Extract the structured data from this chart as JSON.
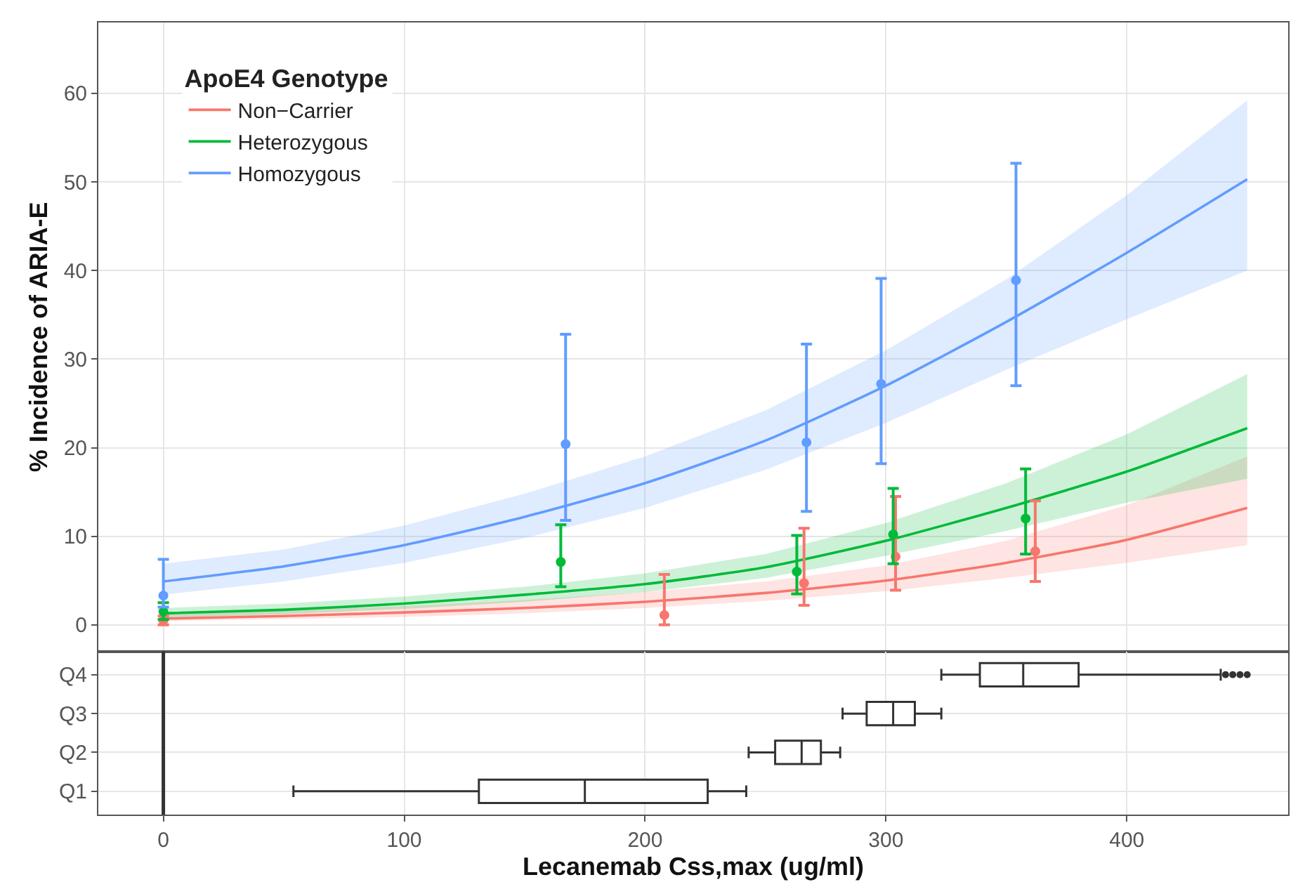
{
  "chart_data": [
    {
      "type": "line",
      "ylabel": "% Incidence of ARIA-E",
      "legend_title": "ApoE4 Genotype",
      "legend": "top left",
      "grid": true,
      "tick_labels": "y",
      "xlim": [
        -27,
        467
      ],
      "xticks": [
        0,
        100,
        200,
        300,
        400
      ],
      "ylim": [
        -3,
        68
      ],
      "yticks": [
        0,
        10,
        20,
        30,
        40,
        50,
        60
      ],
      "series": [
        {
          "name": "Non−Carrier",
          "color": "#f8766d",
          "marker": "none",
          "x": [
            0,
            50,
            100,
            150,
            200,
            250,
            300,
            350,
            400,
            450
          ],
          "values": [
            0.7,
            1.0,
            1.4,
            1.9,
            2.6,
            3.6,
            5.0,
            7.0,
            9.6,
            13.2
          ],
          "lower": [
            0.4,
            0.6,
            0.9,
            1.3,
            1.9,
            2.7,
            3.8,
            5.3,
            7.0,
            9.0
          ],
          "upper": [
            1.2,
            1.6,
            2.1,
            2.8,
            3.7,
            4.9,
            6.7,
            9.5,
            13.5,
            19.0
          ]
        },
        {
          "name": "Heterozygous",
          "color": "#00ba38",
          "marker": "none",
          "x": [
            0,
            50,
            100,
            150,
            200,
            250,
            300,
            350,
            400,
            450
          ],
          "values": [
            1.3,
            1.7,
            2.4,
            3.4,
            4.6,
            6.5,
            9.5,
            13.2,
            17.3,
            22.2
          ],
          "lower": [
            0.8,
            1.2,
            1.8,
            2.6,
            3.7,
            5.3,
            7.8,
            10.6,
            13.8,
            16.5
          ],
          "upper": [
            1.9,
            2.4,
            3.2,
            4.3,
            5.8,
            8.0,
            11.5,
            16.0,
            21.5,
            28.3
          ]
        },
        {
          "name": "Homozygous",
          "color": "#619cff",
          "marker": "none",
          "x": [
            0,
            50,
            100,
            150,
            200,
            250,
            300,
            350,
            400,
            450
          ],
          "values": [
            4.9,
            6.6,
            9.0,
            12.2,
            16.0,
            20.8,
            27.0,
            34.2,
            42.0,
            50.3
          ],
          "lower": [
            3.4,
            4.9,
            7.0,
            9.8,
            13.2,
            17.5,
            22.8,
            28.8,
            34.5,
            40.0
          ],
          "upper": [
            6.9,
            8.5,
            11.2,
            14.8,
            19.0,
            24.2,
            31.0,
            39.0,
            48.5,
            59.2
          ]
        },
        {
          "type": "scatter",
          "color": "#f8766d",
          "marker": "circle",
          "x": [
            0,
            208,
            266,
            304,
            362
          ],
          "values": [
            0.5,
            1.1,
            4.7,
            7.7,
            8.3
          ],
          "errors": [
            [
              0,
              1
            ],
            [
              0,
              5.7
            ],
            [
              2.2,
              10.9
            ],
            [
              3.9,
              14.5
            ],
            [
              4.9,
              14.0
            ]
          ]
        },
        {
          "type": "scatter",
          "color": "#00ba38",
          "marker": "circle",
          "x": [
            0,
            165,
            263,
            303,
            358
          ],
          "values": [
            1.5,
            7.1,
            6.0,
            10.2,
            12.0
          ],
          "errors": [
            [
              0.6,
              2.5
            ],
            [
              4.3,
              11.3
            ],
            [
              3.5,
              10.1
            ],
            [
              6.9,
              15.4
            ],
            [
              8.0,
              17.6
            ]
          ]
        },
        {
          "type": "scatter",
          "color": "#619cff",
          "marker": "circle",
          "x": [
            0,
            167,
            267,
            298,
            354
          ],
          "values": [
            3.3,
            20.4,
            20.6,
            27.2,
            38.9
          ],
          "errors": [
            [
              2.0,
              7.4
            ],
            [
              11.8,
              32.8
            ],
            [
              12.8,
              31.7
            ],
            [
              18.2,
              39.1
            ],
            [
              27.0,
              52.1
            ]
          ]
        }
      ]
    },
    {
      "type": "box",
      "orientation": "horizontal",
      "xlabel": "Lecanemab Css,max (ug/ml)",
      "grid": true,
      "xlim": [
        -27,
        467
      ],
      "xticks": [
        0,
        100,
        200,
        300,
        400
      ],
      "categories": [
        "Q4",
        "Q3",
        "Q2",
        "Q1"
      ],
      "ref_lines": [
        {
          "axis": "x",
          "value": 0,
          "color": "#333333"
        }
      ],
      "boxes": [
        {
          "low": 323,
          "q1": 339,
          "median": 357,
          "q3": 380,
          "high": 439,
          "outliers": [
            441,
            444,
            447,
            450
          ]
        },
        {
          "low": 282,
          "q1": 292,
          "median": 303,
          "q3": 312,
          "high": 323
        },
        {
          "low": 243,
          "q1": 254,
          "median": 265,
          "q3": 273,
          "high": 281
        },
        {
          "low": 54,
          "q1": 131,
          "median": 175,
          "q3": 226,
          "high": 242
        }
      ]
    }
  ]
}
